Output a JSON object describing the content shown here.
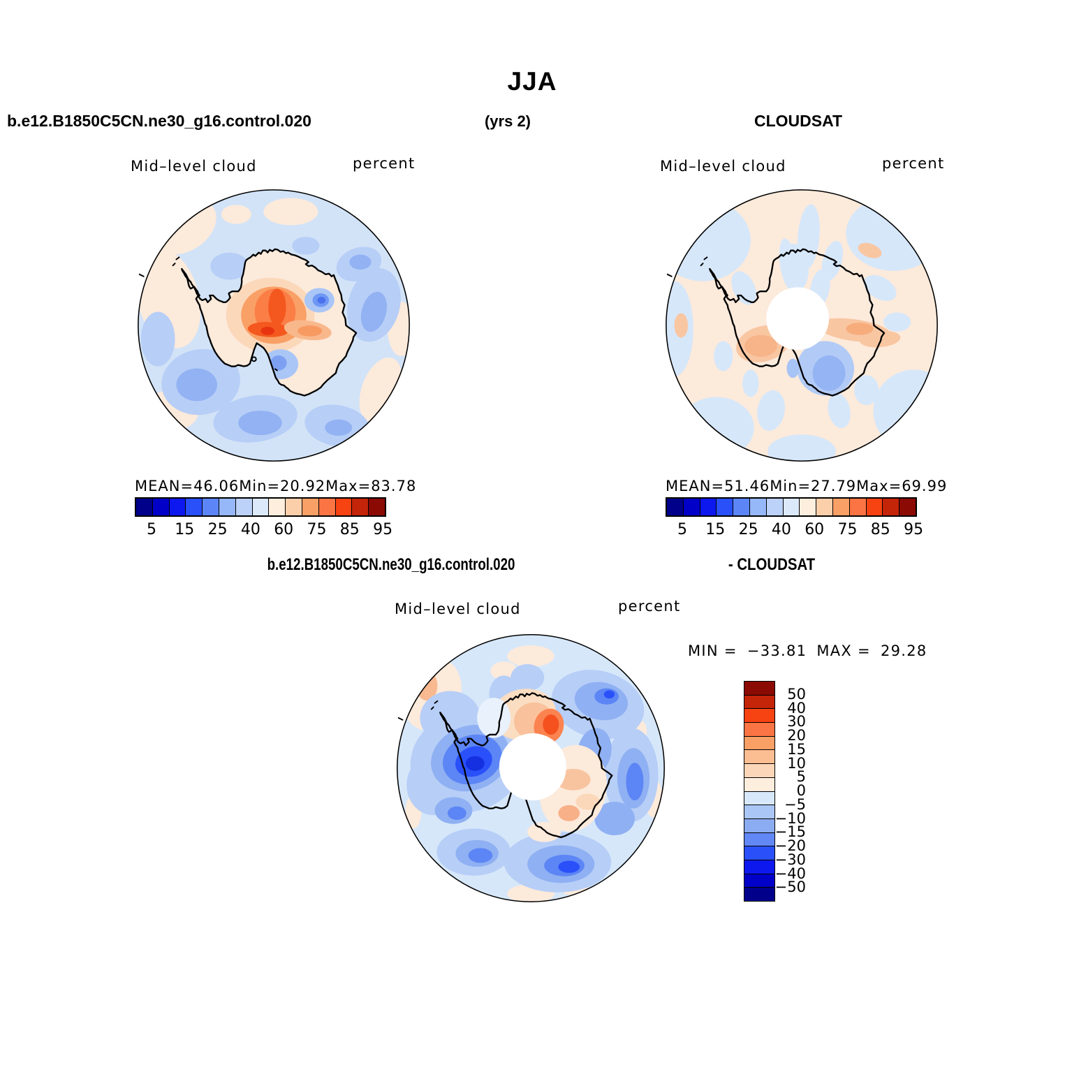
{
  "title": "JJA",
  "header": {
    "model_name": "b.e12.B1850C5CN.ne30_g16.control.020",
    "years_label": "(yrs 2)",
    "obs_name": "CLOUDSAT"
  },
  "diff_header": {
    "left": "b.e12.B1850C5CN.ne30_g16.control.020",
    "right": "- CLOUDSAT"
  },
  "panels": {
    "model": {
      "field": "Mid–level cloud",
      "units": "percent",
      "mean_label": "MEAN=",
      "mean": "46.06",
      "min_label": "Min=",
      "min": "20.92",
      "max_label": "Max=",
      "max": "83.78"
    },
    "obs": {
      "field": "Mid–level cloud",
      "units": "percent",
      "mean_label": "MEAN=",
      "mean": "51.46",
      "min_label": "Min=",
      "min": "27.79",
      "max_label": "Max=",
      "max": "69.99"
    },
    "diff": {
      "field": "Mid–level cloud",
      "units": "percent",
      "min_label": "MIN =",
      "min": "−33.81",
      "max_label": "MAX =",
      "max": "29.28"
    }
  },
  "colorbars": {
    "percent": {
      "ticks": [
        "5",
        "15",
        "25",
        "40",
        "60",
        "75",
        "85",
        "95"
      ],
      "colors": [
        "#00008b",
        "#0000c8",
        "#0c18ee",
        "#2a50fa",
        "#5c86f8",
        "#96b7f8",
        "#bcd2f8",
        "#dbe9fb",
        "#fdeedd",
        "#fccfab",
        "#f9a066",
        "#fb7443",
        "#f74212",
        "#c42408",
        "#8b0a03"
      ]
    },
    "difference": {
      "ticks": [
        "50",
        "40",
        "30",
        "20",
        "15",
        "10",
        "5",
        "0",
        "−5",
        "−10",
        "−15",
        "−20",
        "−30",
        "−40",
        "−50"
      ],
      "colors": [
        "#8b0a03",
        "#c42408",
        "#f74212",
        "#fb7443",
        "#f9a066",
        "#fbbd92",
        "#fcd6b8",
        "#fdeedd",
        "#d8e8fb",
        "#aac6f6",
        "#8cacf2",
        "#6288f6",
        "#2a50fa",
        "#0c18ee",
        "#0000c8",
        "#00008b"
      ]
    }
  },
  "chart_data": [
    {
      "type": "heatmap",
      "subtype": "south-polar-stereographic-contour-map",
      "season": "JJA",
      "years_label": "(yrs 2)",
      "title": "b.e12.B1850C5CN.ne30_g16.control.020",
      "field": "Mid-level cloud",
      "units": "percent",
      "region": "Antarctica / Southern Ocean",
      "stats": {
        "mean": 46.06,
        "min": 20.92,
        "max": 83.78
      },
      "colorbar": {
        "orientation": "horizontal",
        "position": "bottom",
        "tick_labels": [
          5,
          15,
          25,
          40,
          60,
          75,
          85,
          95
        ],
        "n_colors": 15,
        "palette": "blue-white-red diverging"
      }
    },
    {
      "type": "heatmap",
      "subtype": "south-polar-stereographic-contour-map",
      "season": "JJA",
      "title": "CLOUDSAT",
      "field": "Mid-level cloud",
      "units": "percent",
      "region": "Antarctica / Southern Ocean",
      "polar_data_hole": true,
      "stats": {
        "mean": 51.46,
        "min": 27.79,
        "max": 69.99
      },
      "colorbar": {
        "orientation": "horizontal",
        "position": "bottom",
        "tick_labels": [
          5,
          15,
          25,
          40,
          60,
          75,
          85,
          95
        ],
        "n_colors": 15,
        "palette": "blue-white-red diverging"
      }
    },
    {
      "type": "heatmap",
      "subtype": "south-polar-stereographic-contour-map",
      "season": "JJA",
      "title": "b.e12.B1850C5CN.ne30_g16.control.020 - CLOUDSAT",
      "field": "Mid-level cloud",
      "units": "percent",
      "region": "Antarctica / Southern Ocean",
      "polar_data_hole": true,
      "stats": {
        "min": -33.81,
        "max": 29.28
      },
      "colorbar": {
        "orientation": "vertical",
        "position": "right",
        "tick_labels": [
          50,
          40,
          30,
          20,
          15,
          10,
          5,
          0,
          -5,
          -10,
          -15,
          -20,
          -30,
          -40,
          -50
        ],
        "n_colors": 16,
        "palette": "blue-white-red diverging"
      }
    }
  ]
}
